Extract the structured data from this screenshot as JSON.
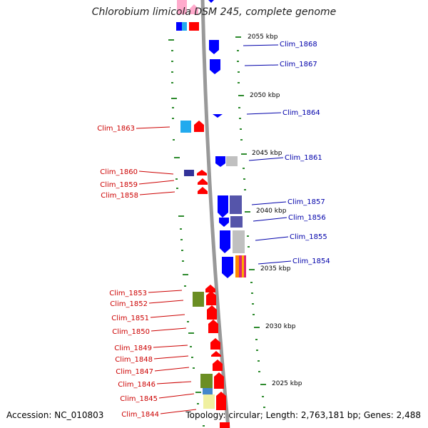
{
  "title": "Chlorobium limicola DSM 245, complete genome",
  "accession_text": "Accession: NC_010803",
  "summary_text": "Topology: circular; Length: 2,763,181 bp; Genes: 2,488",
  "colors": {
    "backbone": "#999999",
    "tick": "#2e8b2e",
    "left_label": "#cc0000",
    "right_label": "#0000aa",
    "red": "#ff0000",
    "blue": "#0000ff",
    "navy": "#333399",
    "slate": "#5555aa",
    "grey": "#c0c0c0",
    "cyan": "#22aaee",
    "olive": "#6b8e23",
    "pale_yellow": "#f0f0a0",
    "pink": "#ffaacc",
    "magenta": "#dd2277",
    "orange": "#ff8800"
  },
  "scale_labels": [
    "2055 kbp",
    "2050 kbp",
    "2045 kbp",
    "2040 kbp",
    "2035 kbp",
    "2030 kbp",
    "2025 kbp"
  ],
  "right_gene_labels": [
    "Clim_1868",
    "Clim_1867",
    "Clim_1864",
    "Clim_1861",
    "Clim_1857",
    "Clim_1856",
    "Clim_1855",
    "Clim_1854"
  ],
  "left_gene_labels": [
    "Clim_1863",
    "Clim_1860",
    "Clim_1859",
    "Clim_1858",
    "Clim_1853",
    "Clim_1852",
    "Clim_1851",
    "Clim_1850",
    "Clim_1849",
    "Clim_1848",
    "Clim_1847",
    "Clim_1846",
    "Clim_1845",
    "Clim_1844"
  ]
}
